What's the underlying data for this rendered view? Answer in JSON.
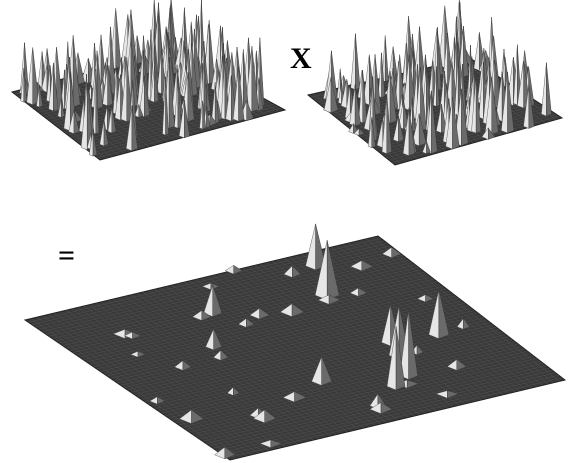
{
  "operator": "X",
  "equals": "="
}
